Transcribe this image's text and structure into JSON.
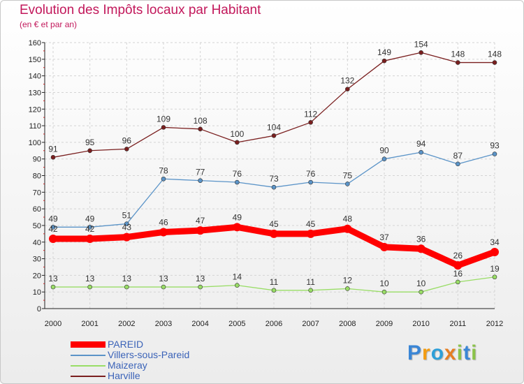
{
  "title": "Evolution des Impôts locaux par Habitant",
  "subtitle": "(en € et par an)",
  "chart_data": {
    "type": "line",
    "title": "Evolution des Impôts locaux par Habitant",
    "subtitle": "(en € et par an)",
    "x": [
      "2000",
      "2001",
      "2002",
      "2003",
      "2004",
      "2005",
      "2006",
      "2007",
      "2008",
      "2009",
      "2010",
      "2011",
      "2012"
    ],
    "ylim": [
      0,
      160
    ],
    "yticks": [
      0,
      10,
      20,
      30,
      40,
      50,
      60,
      70,
      80,
      90,
      100,
      110,
      120,
      130,
      140,
      150,
      160
    ],
    "grid": true,
    "legend_position": "bottom-left",
    "series": [
      {
        "name": "Harville",
        "color": "#7a1f1f",
        "values": [
          91,
          95,
          96,
          109,
          108,
          100,
          104,
          112,
          132,
          149,
          154,
          148,
          148
        ]
      },
      {
        "name": "Villers-sous-Pareid",
        "color": "#5b94c8",
        "values": [
          49,
          49,
          51,
          78,
          77,
          76,
          73,
          76,
          75,
          90,
          94,
          87,
          93
        ]
      },
      {
        "name": "PAREID",
        "color": "#ff0000",
        "values": [
          42,
          42,
          43,
          46,
          47,
          49,
          45,
          45,
          48,
          37,
          36,
          26,
          34
        ]
      },
      {
        "name": "Maizeray",
        "color": "#99dd66",
        "values": [
          13,
          13,
          13,
          13,
          13,
          14,
          11,
          11,
          12,
          10,
          10,
          16,
          19
        ]
      }
    ]
  },
  "legend": [
    {
      "label": "PAREID",
      "color": "#ff0000"
    },
    {
      "label": "Villers-sous-Pareid",
      "color": "#5b94c8"
    },
    {
      "label": "Maizeray",
      "color": "#99dd66"
    },
    {
      "label": "Harville",
      "color": "#7a1f1f"
    }
  ],
  "logo": {
    "letters": [
      "P",
      "r",
      "o",
      "x",
      "i",
      "t",
      "i"
    ],
    "colors": [
      "#3a86d6",
      "#f39c12",
      "#2e9fd8",
      "#e67e22",
      "#8bc34a",
      "#3a86d6",
      "#8bc34a"
    ]
  }
}
